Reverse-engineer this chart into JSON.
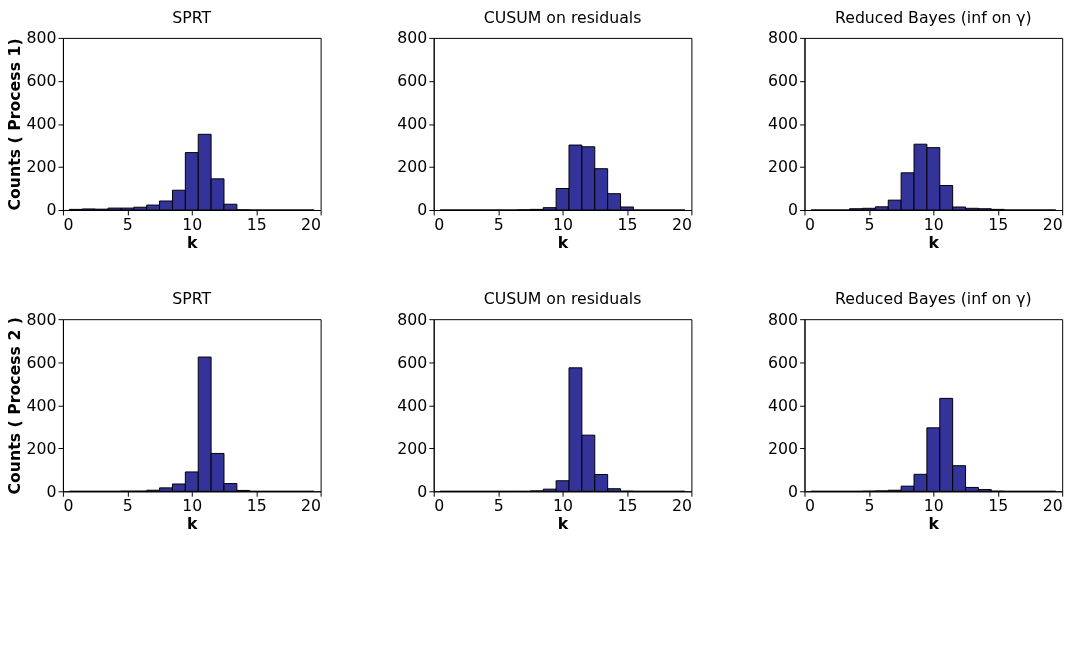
{
  "chart_data": [
    {
      "type": "histogram",
      "title": "SPRT",
      "xlabel": "k",
      "ylabel": "Counts ( Process 1)",
      "bins": [
        0.5,
        1.5,
        2.5,
        3.5,
        4.5,
        5.5,
        6.5,
        7.5,
        8.5,
        9.5,
        10.5,
        11.5,
        12.5,
        13.5,
        14.5,
        15.5,
        16.5,
        17.5,
        18.5,
        19.5
      ],
      "values": [
        3,
        5,
        4,
        9,
        9,
        13,
        23,
        42,
        92,
        267,
        352,
        145,
        27,
        1,
        0,
        0,
        0,
        0,
        0
      ],
      "color": "#333399",
      "xlim": [
        0,
        20
      ],
      "xticks": [
        0,
        5,
        10,
        15,
        20
      ],
      "ylim": [
        0,
        800
      ],
      "yticks": [
        0,
        200,
        400,
        600,
        800
      ],
      "grid": false
    },
    {
      "type": "histogram",
      "title": "CUSUM on residuals",
      "xlabel": "k",
      "bins": [
        0.5,
        1.5,
        2.5,
        3.5,
        4.5,
        5.5,
        6.5,
        7.5,
        8.5,
        9.5,
        10.5,
        11.5,
        12.5,
        13.5,
        14.5,
        15.5,
        16.5,
        17.5,
        18.5,
        19.5
      ],
      "values": [
        0,
        0,
        0,
        0,
        0,
        0,
        1,
        3,
        11,
        100,
        302,
        294,
        192,
        76,
        14,
        0,
        0,
        0,
        0
      ],
      "color": "#333399",
      "xlim": [
        0,
        20
      ],
      "xticks": [
        0,
        5,
        10,
        15,
        20
      ],
      "ylim": [
        0,
        800
      ],
      "yticks": [
        0,
        200,
        400,
        600,
        800
      ],
      "grid": false
    },
    {
      "type": "histogram",
      "title": "Reduced Bayes (inf on γ)",
      "xlabel": "k",
      "bins": [
        0.5,
        1.5,
        2.5,
        3.5,
        4.5,
        5.5,
        6.5,
        7.5,
        8.5,
        9.5,
        10.5,
        11.5,
        12.5,
        13.5,
        14.5,
        15.5,
        16.5,
        17.5,
        18.5,
        19.5
      ],
      "values": [
        0,
        0,
        0,
        6,
        8,
        15,
        46,
        173,
        306,
        290,
        114,
        14,
        8,
        6,
        3,
        0,
        0,
        0,
        0
      ],
      "color": "#333399",
      "xlim": [
        0,
        20
      ],
      "xticks": [
        0,
        5,
        10,
        15,
        20
      ],
      "ylim": [
        0,
        800
      ],
      "yticks": [
        0,
        200,
        400,
        600,
        800
      ],
      "grid": false
    },
    {
      "type": "histogram",
      "title": "SPRT",
      "xlabel": "k",
      "ylabel": "Counts ( Process 2 )",
      "bins": [
        0.5,
        1.5,
        2.5,
        3.5,
        4.5,
        5.5,
        6.5,
        7.5,
        8.5,
        9.5,
        10.5,
        11.5,
        12.5,
        13.5,
        14.5,
        15.5,
        16.5,
        17.5,
        18.5,
        19.5
      ],
      "values": [
        0,
        0,
        0,
        0,
        1,
        1,
        5,
        16,
        34,
        90,
        624,
        176,
        36,
        4,
        0,
        0,
        0,
        0,
        0
      ],
      "color": "#333399",
      "xlim": [
        0,
        20
      ],
      "xticks": [
        0,
        5,
        10,
        15,
        20
      ],
      "ylim": [
        0,
        800
      ],
      "yticks": [
        0,
        200,
        400,
        600,
        800
      ],
      "grid": false
    },
    {
      "type": "histogram",
      "title": "CUSUM on residuals",
      "xlabel": "k",
      "bins": [
        0.5,
        1.5,
        2.5,
        3.5,
        4.5,
        5.5,
        6.5,
        7.5,
        8.5,
        9.5,
        10.5,
        11.5,
        12.5,
        13.5,
        14.5,
        15.5,
        16.5,
        17.5,
        18.5,
        19.5
      ],
      "values": [
        0,
        0,
        0,
        0,
        0,
        0,
        0,
        2,
        10,
        49,
        574,
        261,
        78,
        12,
        1,
        0,
        0,
        0,
        0
      ],
      "color": "#333399",
      "xlim": [
        0,
        20
      ],
      "xticks": [
        0,
        5,
        10,
        15,
        20
      ],
      "ylim": [
        0,
        800
      ],
      "yticks": [
        0,
        200,
        400,
        600,
        800
      ],
      "grid": false
    },
    {
      "type": "histogram",
      "title": "Reduced Bayes (inf on γ)",
      "xlabel": "k",
      "bins": [
        0.5,
        1.5,
        2.5,
        3.5,
        4.5,
        5.5,
        6.5,
        7.5,
        8.5,
        9.5,
        10.5,
        11.5,
        12.5,
        13.5,
        14.5,
        15.5,
        16.5,
        17.5,
        18.5,
        19.5
      ],
      "values": [
        0,
        0,
        0,
        0,
        1,
        2,
        5,
        24,
        79,
        295,
        432,
        119,
        18,
        8,
        1,
        0,
        0,
        0,
        0
      ],
      "color": "#333399",
      "xlim": [
        0,
        20
      ],
      "xticks": [
        0,
        5,
        10,
        15,
        20
      ],
      "ylim": [
        0,
        800
      ],
      "yticks": [
        0,
        200,
        400,
        600,
        800
      ],
      "grid": false
    }
  ]
}
